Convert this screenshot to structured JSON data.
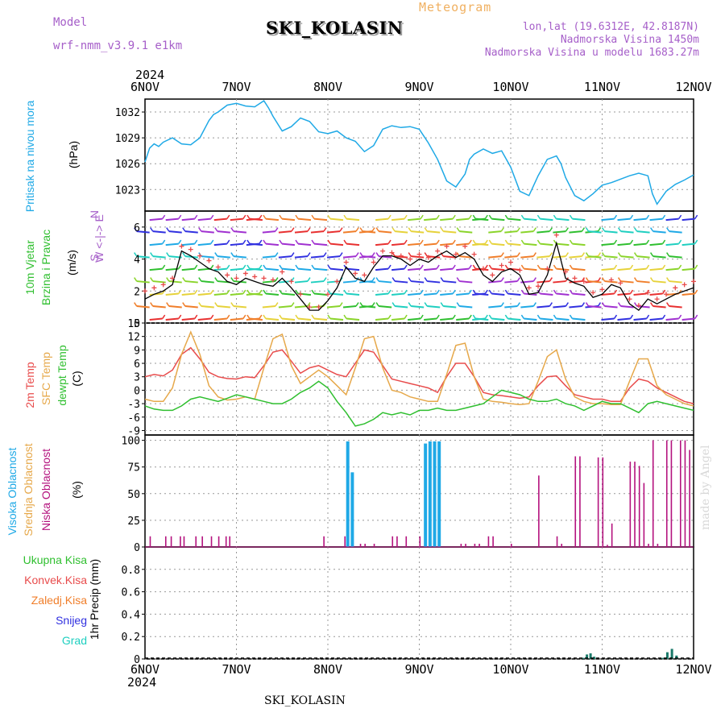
{
  "header": {
    "model_label": "Model",
    "model_value": "wrf-nmm_v3.9.1 e1km",
    "chart_type_label": "Meteogram",
    "station": "SKI_KOLASIN",
    "lonlat": "lon,lat (19.6312E, 42.8187N)",
    "elevation": "Nadmorska Visina 1450m",
    "model_elevation": "Nadmorska Visina u modelu 1683.27m",
    "year": "2024",
    "footer_station": "SKI_KOLASIN",
    "made_by": "made by Angel"
  },
  "x_axis": {
    "dates": [
      "6NOV",
      "7NOV",
      "8NOV",
      "9NOV",
      "10NOV",
      "11NOV",
      "12NOV"
    ],
    "range_days": [
      0,
      6
    ]
  },
  "colors": {
    "pressure": "#1fa9e6",
    "wind_speed": "#000000",
    "gust_marker": "#e84b4b",
    "temp_2m": "#e84b4b",
    "temp_sfc": "#e6a84a",
    "dewpoint": "#2fbf2f",
    "cloud_high": "#1fa9e6",
    "cloud_mid": "#e6a84a",
    "cloud_low": "#b4127e",
    "precip_total": "#2fbf2f",
    "precip_conv": "#e84b4b",
    "precip_frozen": "#f07e2a",
    "snow": "#3030e0",
    "hail": "#1fcfc0"
  },
  "panel_labels": {
    "pressure": {
      "name": "Pritisak na nivou mora",
      "unit": "(hPa)"
    },
    "wind": {
      "name1": "10m Vjetar",
      "name2": "Brzina i Pravac",
      "unit": "(m/s)",
      "compass": "W <-|-> E",
      "compass_n": "N",
      "compass_s": "S"
    },
    "temp": {
      "name1": "2m Temp",
      "name2": "SFC Temp",
      "name3": "dewpt Temp",
      "unit": "(C)"
    },
    "cloud": {
      "name1": "Visoka Oblacnost",
      "name2": "Srednja Oblacnost",
      "name3": "Niska Oblacnost",
      "unit": "(%)"
    },
    "precip": {
      "unit": "1hr Precip (mm)",
      "legend": [
        "Ukupna Kisa",
        "Konvek.Kisa",
        "Zaledj.Kisa",
        "Snijeg",
        "Grad"
      ]
    }
  },
  "chart_data": [
    {
      "type": "line",
      "name": "pressure",
      "ylabel": "(hPa)",
      "yticks": [
        1023,
        1026,
        1029,
        1032
      ],
      "ylim": [
        1020.5,
        1033.5
      ],
      "series": [
        {
          "values_x_days": [
            0,
            0.05,
            0.1,
            0.15,
            0.2,
            0.3,
            0.4,
            0.5,
            0.6,
            0.7,
            0.75,
            0.8,
            0.9,
            1.0,
            1.1,
            1.2,
            1.3,
            1.35,
            1.4,
            1.5,
            1.6,
            1.7,
            1.8,
            1.9,
            2.0,
            2.1,
            2.2,
            2.3,
            2.4,
            2.5,
            2.6,
            2.7,
            2.8,
            2.9,
            3.0,
            3.1,
            3.2,
            3.3,
            3.4,
            3.5,
            3.55,
            3.6,
            3.7,
            3.8,
            3.9,
            4.0,
            4.1,
            4.2,
            4.3,
            4.4,
            4.5,
            4.55,
            4.6,
            4.7,
            4.8,
            4.9,
            5.0,
            5.1,
            5.2,
            5.3,
            5.4,
            5.5,
            5.55,
            5.6,
            5.7,
            5.8,
            5.9,
            6.0
          ],
          "values": [
            1026.2,
            1027.8,
            1028.3,
            1028.0,
            1028.5,
            1029.0,
            1028.3,
            1028.2,
            1029.0,
            1031.0,
            1031.7,
            1032.0,
            1032.8,
            1033.0,
            1032.7,
            1032.6,
            1033.3,
            1032.5,
            1031.5,
            1029.8,
            1030.3,
            1031.3,
            1030.9,
            1029.7,
            1029.5,
            1029.8,
            1029.0,
            1028.6,
            1027.4,
            1028.1,
            1030.0,
            1030.4,
            1030.2,
            1030.3,
            1030.0,
            1028.4,
            1026.5,
            1024.0,
            1023.3,
            1024.8,
            1026.5,
            1027.1,
            1027.7,
            1027.2,
            1027.5,
            1025.6,
            1022.8,
            1022.3,
            1024.6,
            1026.5,
            1026.9,
            1026.0,
            1024.4,
            1022.3,
            1021.7,
            1022.5,
            1023.5,
            1023.8,
            1024.2,
            1024.6,
            1024.9,
            1024.6,
            1022.5,
            1021.3,
            1022.8,
            1023.6,
            1024.1,
            1024.7
          ]
        }
      ]
    },
    {
      "type": "line",
      "name": "wind",
      "ylabel": "(m/s)",
      "yticks": [
        0,
        2,
        4,
        6
      ],
      "ylim": [
        0,
        7
      ],
      "series": [
        {
          "name": "speed",
          "values_x_days": [
            0,
            0.1,
            0.2,
            0.3,
            0.4,
            0.5,
            0.6,
            0.7,
            0.8,
            0.9,
            1.0,
            1.1,
            1.2,
            1.3,
            1.4,
            1.5,
            1.6,
            1.7,
            1.8,
            1.9,
            2.0,
            2.1,
            2.2,
            2.3,
            2.4,
            2.5,
            2.6,
            2.7,
            2.8,
            2.9,
            3.0,
            3.1,
            3.2,
            3.3,
            3.4,
            3.5,
            3.6,
            3.7,
            3.8,
            3.9,
            4.0,
            4.1,
            4.2,
            4.3,
            4.4,
            4.5,
            4.6,
            4.7,
            4.8,
            4.9,
            5.0,
            5.1,
            5.2,
            5.3,
            5.4,
            5.5,
            5.6,
            5.7,
            5.8,
            5.9,
            6.0
          ],
          "values": [
            1.5,
            1.8,
            2.0,
            2.4,
            4.5,
            4.2,
            3.8,
            3.4,
            3.2,
            2.6,
            2.4,
            2.8,
            2.6,
            2.4,
            2.3,
            2.8,
            2.2,
            1.5,
            0.8,
            0.8,
            1.4,
            2.2,
            3.5,
            2.8,
            2.6,
            3.5,
            4.2,
            4.2,
            4.0,
            3.6,
            4.0,
            3.8,
            4.2,
            4.5,
            4.1,
            4.4,
            4.0,
            3.0,
            2.6,
            3.2,
            3.4,
            3.0,
            1.8,
            1.9,
            3.0,
            5.0,
            2.8,
            2.5,
            2.3,
            1.6,
            1.8,
            2.4,
            2.2,
            1.2,
            0.8,
            1.5,
            1.2,
            1.5,
            1.8,
            2.0,
            2.2
          ]
        },
        {
          "name": "gust",
          "values_x_days": [
            0,
            0.1,
            0.2,
            0.3,
            0.4,
            0.5,
            0.6,
            0.7,
            0.8,
            0.9,
            1.0,
            1.1,
            1.2,
            1.3,
            1.4,
            1.5,
            1.6,
            1.7,
            1.8,
            1.9,
            2.0,
            2.1,
            2.2,
            2.3,
            2.4,
            2.5,
            2.6,
            2.7,
            2.8,
            2.9,
            3.0,
            3.1,
            3.2,
            3.3,
            3.4,
            3.5,
            3.6,
            3.7,
            3.8,
            3.9,
            4.0,
            4.1,
            4.2,
            4.3,
            4.4,
            4.5,
            4.6,
            4.7,
            4.8,
            4.9,
            5.0,
            5.1,
            5.2,
            5.3,
            5.4,
            5.5,
            5.6,
            5.7,
            5.8,
            5.9,
            6.0
          ],
          "values": [
            2.0,
            2.2,
            2.4,
            2.8,
            4.8,
            4.6,
            4.2,
            3.9,
            3.5,
            3.0,
            2.8,
            3.1,
            2.9,
            2.8,
            2.7,
            3.2,
            2.6,
            1.8,
            1.0,
            1.0,
            1.8,
            2.6,
            3.8,
            3.1,
            3.0,
            3.8,
            4.5,
            4.4,
            4.2,
            4.0,
            4.3,
            4.1,
            4.5,
            4.8,
            4.3,
            4.8,
            4.3,
            3.4,
            3.0,
            3.6,
            3.8,
            3.3,
            2.2,
            2.3,
            3.4,
            5.5,
            3.2,
            2.8,
            2.6,
            1.9,
            2.1,
            2.7,
            2.5,
            1.5,
            1.1,
            1.9,
            1.5,
            1.8,
            2.2,
            2.4,
            2.6
          ]
        }
      ]
    },
    {
      "type": "line",
      "name": "temperature",
      "ylabel": "(C)",
      "yticks": [
        -9,
        -6,
        -3,
        0,
        3,
        6,
        9,
        12,
        15
      ],
      "ylim": [
        -10,
        15
      ],
      "x_days": [
        0,
        0.1,
        0.2,
        0.3,
        0.4,
        0.5,
        0.6,
        0.7,
        0.8,
        0.9,
        1.0,
        1.1,
        1.2,
        1.3,
        1.4,
        1.5,
        1.6,
        1.7,
        1.8,
        1.9,
        2.0,
        2.1,
        2.2,
        2.3,
        2.4,
        2.5,
        2.6,
        2.7,
        2.8,
        2.9,
        3.0,
        3.1,
        3.2,
        3.3,
        3.4,
        3.5,
        3.6,
        3.7,
        3.8,
        3.9,
        4.0,
        4.1,
        4.2,
        4.3,
        4.4,
        4.5,
        4.6,
        4.7,
        4.8,
        4.9,
        5.0,
        5.1,
        5.2,
        5.3,
        5.4,
        5.5,
        5.6,
        5.7,
        5.8,
        5.9,
        6.0
      ],
      "series": [
        {
          "name": "2m Temp",
          "values": [
            3.0,
            3.5,
            3.2,
            4.5,
            8.0,
            9.5,
            7.0,
            4.0,
            3.0,
            2.6,
            2.5,
            3.0,
            2.8,
            5.5,
            8.5,
            9.0,
            6.5,
            3.8,
            5.0,
            5.5,
            4.5,
            3.5,
            3.0,
            6.0,
            9.0,
            8.5,
            5.5,
            2.5,
            2.0,
            1.5,
            1.0,
            0.5,
            -0.5,
            3.0,
            6.0,
            6.0,
            3.0,
            -0.5,
            -1.0,
            -1.2,
            -1.5,
            -1.8,
            -1.5,
            1.0,
            3.0,
            3.2,
            1.0,
            -1.0,
            -1.5,
            -2.0,
            -2.0,
            -2.5,
            -2.5,
            0.5,
            2.5,
            2.0,
            0.5,
            -0.5,
            -1.5,
            -2.5,
            -3.0
          ]
        },
        {
          "name": "SFC Temp",
          "values": [
            -2.0,
            -2.5,
            -2.5,
            0.5,
            8.0,
            13.0,
            8.0,
            1.0,
            -1.5,
            -2.2,
            -2.0,
            -1.5,
            -2.0,
            5.0,
            11.5,
            12.5,
            5.5,
            1.5,
            3.0,
            4.5,
            3.0,
            1.0,
            -1.0,
            5.0,
            11.5,
            12.0,
            5.0,
            0.0,
            -0.5,
            -1.5,
            -2.0,
            -2.5,
            -2.5,
            3.5,
            10.0,
            10.5,
            3.0,
            -2.0,
            -2.5,
            -2.7,
            -3.0,
            -3.2,
            -3.0,
            2.0,
            7.5,
            9.0,
            2.5,
            -1.5,
            -2.5,
            -3.0,
            -3.0,
            -3.2,
            -3.2,
            2.0,
            7.0,
            7.0,
            1.0,
            -1.0,
            -2.0,
            -3.0,
            -3.5
          ]
        },
        {
          "name": "dewpt Temp",
          "values": [
            -3.5,
            -4.2,
            -4.5,
            -4.5,
            -3.5,
            -2.0,
            -1.5,
            -2.0,
            -2.5,
            -1.8,
            -1.0,
            -1.5,
            -2.0,
            -2.5,
            -3.0,
            -3.0,
            -2.0,
            -0.5,
            0.5,
            2.0,
            0.5,
            -2.5,
            -5.0,
            -8.0,
            -7.5,
            -6.5,
            -5.0,
            -5.5,
            -5.0,
            -5.5,
            -4.5,
            -4.5,
            -4.0,
            -4.5,
            -4.5,
            -4.0,
            -3.5,
            -3.0,
            -1.5,
            0.0,
            -0.5,
            -1.0,
            -2.0,
            -2.5,
            -2.5,
            -2.0,
            -3.0,
            -3.5,
            -4.5,
            -3.5,
            -2.5,
            -3.0,
            -3.0,
            -4.0,
            -5.0,
            -3.0,
            -2.5,
            -3.0,
            -3.5,
            -4.0,
            -4.5
          ]
        }
      ]
    },
    {
      "type": "bar",
      "name": "cloud_cover",
      "ylabel": "(%)",
      "yticks": [
        0,
        25,
        50,
        75,
        100
      ],
      "ylim": [
        0,
        105
      ],
      "series": [
        {
          "name": "Visoka Oblacnost",
          "x_days": [
            2.2,
            2.25,
            3.05,
            3.1,
            3.15,
            3.2
          ],
          "values": [
            99,
            70,
            97,
            99,
            99,
            99
          ]
        },
        {
          "name": "Niska Oblacnost",
          "x_days": [
            0.05,
            0.22,
            0.28,
            0.38,
            0.42,
            0.55,
            0.62,
            0.72,
            0.8,
            0.88,
            0.92,
            1.95,
            2.18,
            2.35,
            2.4,
            2.5,
            2.7,
            2.75,
            2.85,
            3.0,
            3.45,
            3.5,
            3.6,
            3.65,
            3.75,
            3.8,
            4.0,
            4.3,
            4.5,
            4.55,
            4.7,
            4.75,
            4.95,
            5.0,
            5.05,
            5.1,
            5.3,
            5.35,
            5.4,
            5.45,
            5.5,
            5.55,
            5.6,
            5.7,
            5.75,
            5.85,
            5.9,
            5.95
          ],
          "values": [
            10,
            10,
            10,
            10,
            10,
            10,
            10,
            10,
            10,
            10,
            10,
            10,
            10,
            3,
            3,
            3,
            10,
            10,
            10,
            10,
            3,
            3,
            3,
            3,
            10,
            10,
            3,
            67,
            10,
            3,
            85,
            85,
            84,
            84,
            2,
            22,
            80,
            80,
            76,
            60,
            3,
            100,
            3,
            100,
            100,
            100,
            100,
            91
          ]
        }
      ]
    },
    {
      "type": "bar",
      "name": "precipitation",
      "ylabel": "1hr Precip (mm)",
      "yticks": [
        0,
        0.2,
        0.4,
        0.6,
        0.8
      ],
      "ylim": [
        0,
        1.0
      ],
      "series": [
        {
          "name": "Ukupna Kisa",
          "x_days": [
            4.78,
            4.82,
            4.86,
            4.9,
            5.65,
            5.7,
            5.75,
            5.8
          ],
          "values": [
            0.01,
            0.04,
            0.05,
            0.02,
            0.01,
            0.06,
            0.09,
            0.03
          ]
        }
      ]
    }
  ]
}
